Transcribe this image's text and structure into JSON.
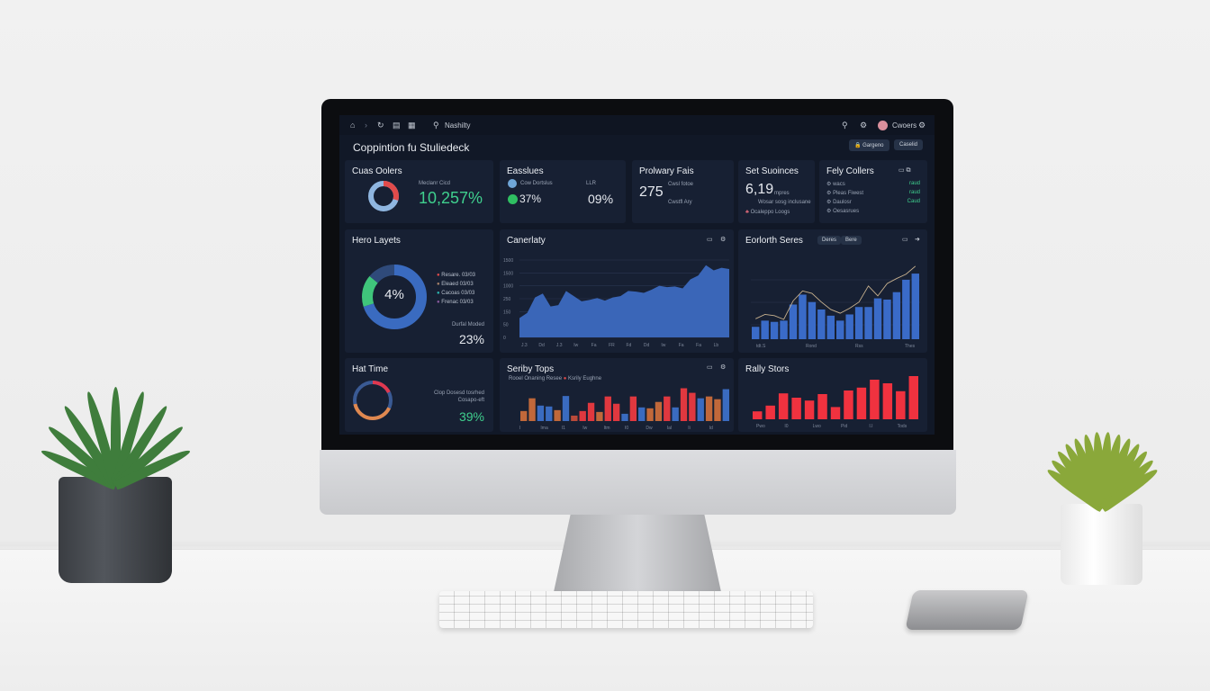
{
  "topbar": {
    "search_label": "Nashilty",
    "user_name": "Cwoers"
  },
  "page_title": "Coppintion fu Stuliedeck",
  "header_buttons": [
    {
      "label": "Gargeno"
    },
    {
      "label": "Caselid"
    }
  ],
  "kpi": {
    "cards": [
      {
        "title": "Cuas Oolers",
        "sub": "Meclanr Cicd",
        "value": "10,257%"
      },
      {
        "title": "Easslues",
        "item1": "Cow Dortslus",
        "item2": "LLR",
        "value1": "37%",
        "value2": "09%"
      },
      {
        "title": "Prolwary Fais",
        "value": "275",
        "sub1": "Cwsl fotoe",
        "sub2": "Cwstfl Ary"
      },
      {
        "title": "Set Suoinces",
        "value": "6,19",
        "unit": "mpres",
        "sub": "Wosar sosg inclusane",
        "foot": "Ocaleppo Loogs"
      },
      {
        "title": "Fely Collers",
        "rows": [
          {
            "name": "wacs",
            "val": "raud"
          },
          {
            "name": "Pleas Fiwest",
            "val": "raud"
          },
          {
            "name": "Daulosr",
            "val": "Caud"
          },
          {
            "name": "Oesasrues",
            "val": ""
          }
        ]
      }
    ]
  },
  "donut_card": {
    "title": "Hero Layets",
    "center": "4%",
    "legend": [
      {
        "label": "Resare. 03/03",
        "color": "#e14b4b"
      },
      {
        "label": "Eleaed 03/03",
        "color": "#a9836a"
      },
      {
        "label": "Cacoas 03/03",
        "color": "#2bb5b0"
      },
      {
        "label": "Frenac 03/03",
        "color": "#8b5aa0"
      }
    ],
    "foot_label": "Durfal Moded",
    "foot_value": "23%",
    "slices": [
      {
        "value": 70,
        "color": "#3a6bc0"
      },
      {
        "value": 16,
        "color": "#3fc57b"
      },
      {
        "value": 14,
        "color": "#2f4a7a"
      }
    ]
  },
  "area_card": {
    "title": "Canerlaty"
  },
  "combo_card": {
    "title": "Eorlorth Seres",
    "tabs": [
      "Deres",
      "Bere"
    ]
  },
  "ring_card": {
    "title": "Hat Time",
    "sub1": "Clop Dosesd tosrhed",
    "sub2": "Cosapo-eft",
    "value": "39%"
  },
  "stacked_card": {
    "title": "Seriby Tops",
    "legend": [
      {
        "label": "Rooel Onaning Resee",
        "color": "#9aa4b5"
      },
      {
        "label": "Ksrily Eughne",
        "color": "#e14b4b"
      }
    ]
  },
  "red_card": {
    "title": "Rally Stors"
  },
  "chart_data": [
    {
      "type": "area",
      "title": "Canerlaty",
      "y_ticks": [
        "0",
        "50",
        "150",
        "250",
        "1000",
        "1500",
        "1500"
      ],
      "x_ticks": [
        "J.3",
        "Dd",
        "J.3",
        "Iw",
        "Fa",
        "FR",
        "Fd",
        "Dd",
        "Iw",
        "Fa",
        "Fa",
        "Lb"
      ],
      "values": [
        30,
        38,
        62,
        68,
        48,
        50,
        72,
        64,
        56,
        58,
        61,
        57,
        62,
        64,
        72,
        71,
        69,
        74,
        80,
        78,
        79,
        76,
        90,
        96,
        112,
        104,
        108,
        106
      ]
    },
    {
      "type": "bar+line",
      "title": "Eorlorth Seres",
      "x_ticks": [
        "tdt.S",
        "Rond",
        "Rss",
        "Thes"
      ],
      "bars": [
        20,
        30,
        28,
        30,
        56,
        72,
        60,
        48,
        38,
        30,
        40,
        52,
        52,
        66,
        64,
        76,
        96,
        106
      ],
      "line": [
        33,
        40,
        38,
        32,
        62,
        78,
        74,
        60,
        48,
        42,
        50,
        60,
        86,
        70,
        90,
        98,
        105,
        118
      ]
    },
    {
      "type": "bar",
      "title": "Seriby Tops",
      "x_ticks": [
        "I",
        "Ima",
        "I1",
        "Iw",
        "Itm",
        "I0",
        "Dw",
        "Ial",
        "Ii",
        "Id"
      ],
      "values": [
        22,
        50,
        34,
        32,
        24,
        55,
        12,
        22,
        40,
        20,
        54,
        38,
        16,
        54,
        30,
        28,
        42,
        54,
        30,
        72,
        62,
        50,
        54,
        48,
        70
      ],
      "colors": [
        "#c1683a",
        "#c1683a",
        "#3a6bc0",
        "#3a6bc0",
        "#c1683a",
        "#3a6bc0",
        "#b94a3a",
        "#e0383f",
        "#e0383f",
        "#c1683a",
        "#e0383f",
        "#e0383f",
        "#3a6bc0",
        "#e0383f",
        "#3a6bc0",
        "#c1683a",
        "#c1683a",
        "#e0383f",
        "#3a6bc0",
        "#e0383f",
        "#e0383f",
        "#3a6bc0",
        "#c1683a",
        "#c1683a",
        "#3a6bc0"
      ]
    },
    {
      "type": "bar",
      "title": "Rally Stors",
      "x_ticks": [
        "Pwo",
        "I0",
        "Lwo",
        "Pid",
        "I.I",
        "Tods"
      ],
      "values": [
        22,
        38,
        72,
        60,
        52,
        70,
        34,
        80,
        88,
        110,
        100,
        78,
        120
      ]
    }
  ]
}
